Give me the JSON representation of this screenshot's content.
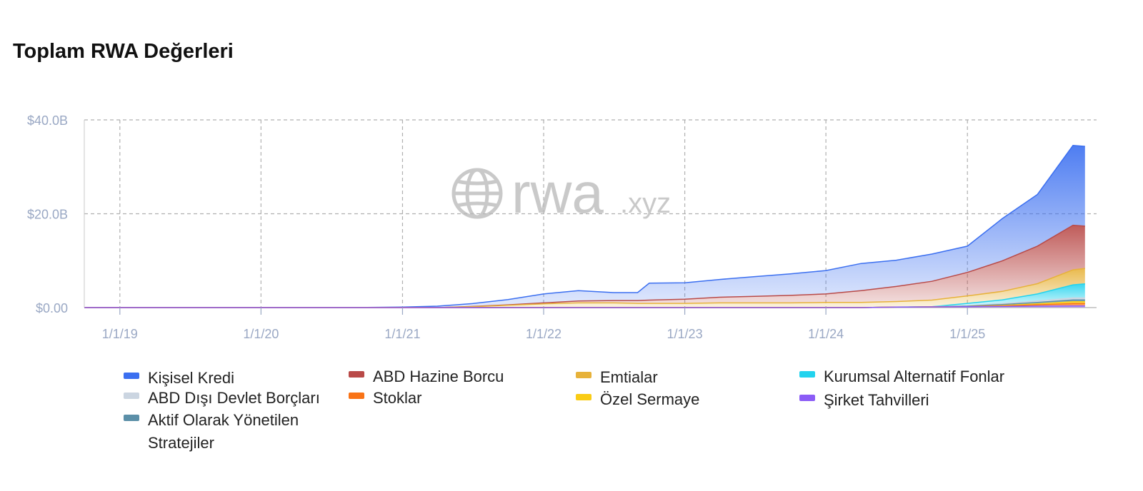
{
  "title": "Toplam RWA Değerleri",
  "watermark": {
    "brand": "rwa",
    "suffix": ".xyz"
  },
  "chart_data": {
    "type": "area",
    "stacked": true,
    "title": "Toplam RWA Değerleri",
    "xlabel": "",
    "ylabel": "",
    "x": [
      "2018-10",
      "2019-01",
      "2019-04",
      "2019-07",
      "2019-10",
      "2020-01",
      "2020-04",
      "2020-07",
      "2020-10",
      "2021-01",
      "2021-04",
      "2021-07",
      "2021-10",
      "2022-01",
      "2022-04",
      "2022-07",
      "2022-09",
      "2022-10",
      "2023-01",
      "2023-04",
      "2023-07",
      "2023-10",
      "2024-01",
      "2024-04",
      "2024-07",
      "2024-10",
      "2025-01",
      "2025-04",
      "2025-07",
      "2025-10",
      "2025-11"
    ],
    "x_tick_labels": [
      "1/1/19",
      "1/1/20",
      "1/1/21",
      "1/1/22",
      "1/1/23",
      "1/1/24",
      "1/1/25"
    ],
    "y_tick_labels": [
      "$0.00",
      "$20.0B",
      "$40.0B"
    ],
    "ylim": [
      0,
      40
    ],
    "y_unit": "billion USD",
    "grid": true,
    "legend_position": "bottom",
    "series": [
      {
        "name": "Şirket Tahvilleri",
        "color": "#8b5cf6",
        "values": [
          0,
          0,
          0,
          0,
          0,
          0,
          0,
          0,
          0,
          0,
          0,
          0,
          0,
          0,
          0,
          0,
          0,
          0,
          0,
          0,
          0,
          0,
          0,
          0,
          0.1,
          0.15,
          0.2,
          0.25,
          0.3,
          0.35,
          0.35
        ]
      },
      {
        "name": "Stoklar",
        "color": "#f97316",
        "values": [
          0,
          0,
          0,
          0,
          0,
          0,
          0,
          0,
          0,
          0,
          0,
          0,
          0,
          0,
          0,
          0,
          0,
          0,
          0,
          0,
          0,
          0,
          0,
          0,
          0,
          0,
          0,
          0.1,
          0.3,
          0.5,
          0.5
        ]
      },
      {
        "name": "Özel Sermaye",
        "color": "#facc15",
        "values": [
          0,
          0,
          0,
          0,
          0,
          0,
          0,
          0,
          0,
          0,
          0,
          0,
          0,
          0,
          0,
          0,
          0,
          0,
          0,
          0,
          0,
          0,
          0,
          0,
          0,
          0,
          0,
          0.1,
          0.2,
          0.4,
          0.4
        ]
      },
      {
        "name": "Aktif Olarak Yönetilen Stratejiler",
        "color": "#5b8fa8",
        "values": [
          0,
          0,
          0,
          0,
          0,
          0,
          0,
          0,
          0,
          0,
          0,
          0,
          0,
          0,
          0,
          0,
          0,
          0,
          0,
          0,
          0,
          0,
          0,
          0,
          0,
          0,
          0.1,
          0.2,
          0.3,
          0.4,
          0.4
        ]
      },
      {
        "name": "ABD Dışı Devlet Borçları",
        "color": "#cbd5e1",
        "values": [
          0,
          0,
          0,
          0,
          0,
          0,
          0,
          0,
          0,
          0,
          0,
          0,
          0,
          0,
          0,
          0,
          0,
          0,
          0,
          0,
          0,
          0,
          0,
          0,
          0,
          0.05,
          0.1,
          0.2,
          0.3,
          0.4,
          0.4
        ]
      },
      {
        "name": "Kurumsal Alternatif Fonlar",
        "color": "#22d3ee",
        "values": [
          0,
          0,
          0,
          0,
          0,
          0,
          0,
          0,
          0,
          0,
          0,
          0,
          0,
          0,
          0,
          0,
          0,
          0,
          0,
          0,
          0,
          0,
          0,
          0,
          0,
          0,
          0.5,
          0.8,
          1.5,
          2.8,
          3.0
        ]
      },
      {
        "name": "Emtialar",
        "color": "#e7b23a",
        "values": [
          0,
          0,
          0,
          0,
          0,
          0,
          0,
          0,
          0,
          0,
          0,
          0.2,
          0.5,
          0.8,
          1.0,
          1.0,
          0.9,
          0.9,
          0.9,
          1.0,
          1.0,
          1.0,
          1.1,
          1.1,
          1.2,
          1.4,
          1.6,
          1.8,
          2.2,
          3.2,
          3.3
        ]
      },
      {
        "name": "ABD Hazine Borcu",
        "color": "#b94a48",
        "values": [
          0,
          0,
          0,
          0,
          0,
          0,
          0,
          0,
          0,
          0,
          0,
          0.05,
          0.1,
          0.2,
          0.4,
          0.5,
          0.6,
          0.7,
          0.9,
          1.2,
          1.4,
          1.6,
          1.8,
          2.5,
          3.2,
          4.0,
          5.0,
          6.5,
          8.0,
          9.5,
          9.0
        ]
      },
      {
        "name": "Kişisel Kredi",
        "color": "#3b6ff0",
        "values": [
          0,
          0,
          0,
          0,
          0,
          0,
          0.01,
          0.02,
          0.05,
          0.1,
          0.3,
          0.6,
          1.1,
          1.9,
          2.2,
          1.7,
          1.7,
          3.6,
          3.5,
          3.8,
          4.2,
          4.6,
          5.0,
          5.8,
          5.6,
          5.8,
          5.6,
          9.0,
          11.0,
          17.0,
          17.0
        ]
      }
    ]
  },
  "legend": [
    {
      "label": "Kişisel Kredi",
      "color": "#3b6ff0"
    },
    {
      "label": "ABD Hazine Borcu",
      "color": "#b94a48"
    },
    {
      "label": "Emtialar",
      "color": "#e7b23a"
    },
    {
      "label": "Kurumsal Alternatif Fonlar",
      "color": "#22d3ee"
    },
    {
      "label": "ABD Dışı Devlet Borçları",
      "color": "#cbd5e1"
    },
    {
      "label": "Stoklar",
      "color": "#f97316"
    },
    {
      "label": "Özel Sermaye",
      "color": "#facc15"
    },
    {
      "label": "Şirket Tahvilleri",
      "color": "#8b5cf6"
    },
    {
      "label": "Aktif Olarak Yönetilen Stratejiler",
      "color": "#5b8fa8"
    }
  ]
}
